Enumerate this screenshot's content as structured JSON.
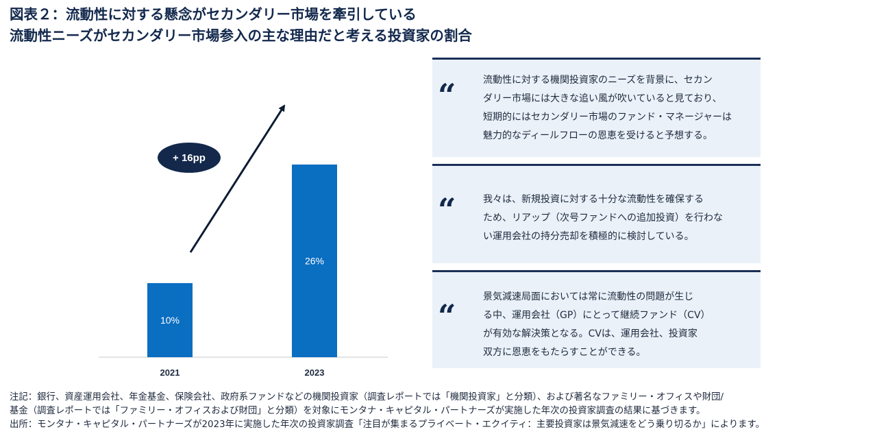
{
  "header": {
    "title_line1": "図表２：流動性に対する懸念がセカンダリー市場を牽引している",
    "title_line2": "流動性ニーズがセカンダリー市場参入の主な理由だと考える投資家の割合"
  },
  "chart_data": {
    "type": "bar",
    "categories": [
      "2021",
      "2023"
    ],
    "values": [
      10,
      26
    ],
    "data_labels": [
      "10%",
      "26%"
    ],
    "ylim": [
      0,
      30
    ],
    "grid": false,
    "annotation": "+ 16pp",
    "bar_color": "#0a6ec1"
  },
  "quotes": [
    {
      "mark": "“",
      "lines": [
        "流動性に対する機関投資家のニーズを背景に、セカン",
        "ダリー市場には大きな追い風が吹いていると見ており、",
        "短期的にはセカンダリー市場のファンド・マネージャーは",
        "魅力的なディールフローの恩恵を受けると予想する。"
      ]
    },
    {
      "mark": "“",
      "lines": [
        "我々は、新規投資に対する十分な流動性を確保する",
        "ため、リアップ（次号ファンドへの追加投資）を行わな",
        "い運用会社の持分売却を積極的に検討している。"
      ]
    },
    {
      "mark": "“",
      "lines": [
        "景気減速局面においては常に流動性の問題が生じ",
        "る中、運用会社（GP）にとって継続ファンド（CV）",
        "が有効な解決策となる。CVは、運用会社、投資家",
        "双方に恩恵をもたらすことができる。"
      ]
    }
  ],
  "notes": {
    "note_line1": "注記：銀行、資産運用会社、年金基金、保険会社、政府系ファンドなどの機関投資家（調査レポートでは「機関投資家」と分類）、および著名なファミリー・オフィスや財団/",
    "note_line2": "基金（調査レポートでは「ファミリー・オフィスおよび財団」と分類）を対象にモンタナ・キャピタル・パートナーズが実施した年次の投資家調査の結果に基づきます。",
    "source": "出所：モンタナ・キャピタル・パートナーズが2023年に実施した年次の投資家調査「注目が集まるプライベート・エクイティ：主要投資家は景気減速をどう乗り切るか」によります。"
  },
  "colors": {
    "navy": "#12284c",
    "quote_bg": "#eaf1f8",
    "bar": "#0a6ec1"
  }
}
